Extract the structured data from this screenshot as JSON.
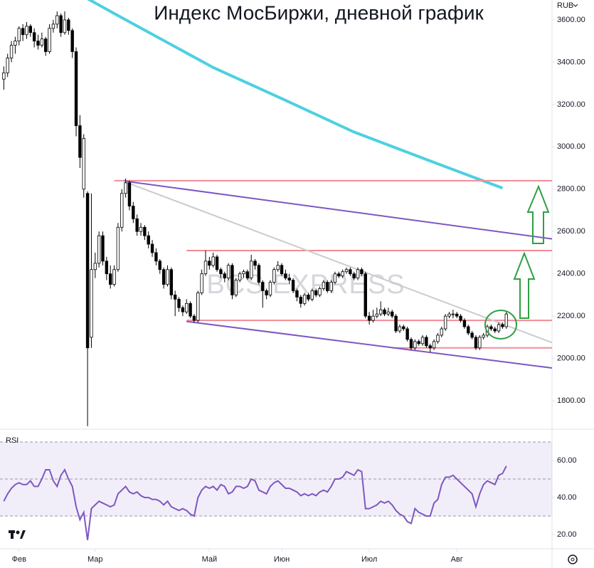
{
  "chart_data": [
    {
      "type": "candlestick",
      "title": "Индекс МосБиржи, дневной график",
      "watermark": "BCS EXPRESS",
      "currency": "RUB",
      "up_color": "#ffffff",
      "down_color": "#000000",
      "border_color": "#000000",
      "xlim": [
        -1,
        144
      ],
      "ylim": [
        1669,
        3694
      ],
      "yticks": [
        {
          "value": 1800,
          "label": "1800.00"
        },
        {
          "value": 2000,
          "label": "2000.00"
        },
        {
          "value": 2200,
          "label": "2200.00"
        },
        {
          "value": 2400,
          "label": "2400.00"
        },
        {
          "value": 2600,
          "label": "2600.00"
        },
        {
          "value": 2800,
          "label": "2800.00"
        },
        {
          "value": 3000,
          "label": "3000.00"
        },
        {
          "value": 3200,
          "label": "3200.00"
        },
        {
          "value": 3400,
          "label": "3400.00"
        },
        {
          "value": 3600,
          "label": "3600.00"
        }
      ],
      "xticks": [
        {
          "value": 4,
          "label": "Фев"
        },
        {
          "value": 24,
          "label": "Мар"
        },
        {
          "value": 54,
          "label": "Май"
        },
        {
          "value": 73,
          "label": "Июн"
        },
        {
          "value": 96,
          "label": "Июл"
        },
        {
          "value": 119,
          "label": "Авг"
        }
      ],
      "candles": [
        [
          3320,
          3380,
          3270,
          3350
        ],
        [
          3350,
          3440,
          3330,
          3420
        ],
        [
          3420,
          3500,
          3400,
          3480
        ],
        [
          3480,
          3520,
          3440,
          3500
        ],
        [
          3500,
          3570,
          3480,
          3560
        ],
        [
          3560,
          3580,
          3500,
          3530
        ],
        [
          3530,
          3590,
          3510,
          3570
        ],
        [
          3570,
          3580,
          3520,
          3540
        ],
        [
          3540,
          3560,
          3470,
          3500
        ],
        [
          3500,
          3530,
          3460,
          3480
        ],
        [
          3480,
          3540,
          3470,
          3510
        ],
        [
          3510,
          3520,
          3430,
          3450
        ],
        [
          3450,
          3580,
          3440,
          3560
        ],
        [
          3560,
          3600,
          3540,
          3580
        ],
        [
          3580,
          3640,
          3560,
          3620
        ],
        [
          3620,
          3630,
          3520,
          3540
        ],
        [
          3540,
          3640,
          3530,
          3600
        ],
        [
          3600,
          3610,
          3530,
          3550
        ],
        [
          3550,
          3560,
          3420,
          3450
        ],
        [
          3450,
          3470,
          3050,
          3100
        ],
        [
          3100,
          3150,
          2900,
          2950
        ],
        [
          2800,
          3060,
          2760,
          3040
        ],
        [
          2780,
          2790,
          1680,
          2050
        ],
        [
          2100,
          2780,
          2050,
          2420
        ],
        [
          2420,
          2500,
          2380,
          2450
        ],
        [
          2450,
          2600,
          2430,
          2580
        ],
        [
          2580,
          2600,
          2440,
          2460
        ],
        [
          2460,
          2480,
          2370,
          2400
        ],
        [
          2400,
          2440,
          2330,
          2350
        ],
        [
          2350,
          2440,
          2340,
          2420
        ],
        [
          2420,
          2640,
          2410,
          2620
        ],
        [
          2620,
          2800,
          2600,
          2780
        ],
        [
          2780,
          2850,
          2760,
          2830
        ],
        [
          2830,
          2840,
          2700,
          2720
        ],
        [
          2720,
          2740,
          2640,
          2660
        ],
        [
          2660,
          2680,
          2580,
          2600
        ],
        [
          2600,
          2640,
          2580,
          2620
        ],
        [
          2620,
          2630,
          2560,
          2580
        ],
        [
          2580,
          2600,
          2520,
          2540
        ],
        [
          2540,
          2560,
          2480,
          2500
        ],
        [
          2500,
          2520,
          2440,
          2460
        ],
        [
          2460,
          2470,
          2400,
          2420
        ],
        [
          2420,
          2430,
          2330,
          2350
        ],
        [
          2350,
          2440,
          2340,
          2420
        ],
        [
          2420,
          2430,
          2280,
          2300
        ],
        [
          2300,
          2320,
          2200,
          2280
        ],
        [
          2280,
          2290,
          2220,
          2240
        ],
        [
          2240,
          2250,
          2200,
          2220
        ],
        [
          2220,
          2280,
          2210,
          2260
        ],
        [
          2260,
          2270,
          2190,
          2200
        ],
        [
          2200,
          2210,
          2170,
          2180
        ],
        [
          2180,
          2320,
          2170,
          2310
        ],
        [
          2310,
          2420,
          2300,
          2400
        ],
        [
          2400,
          2510,
          2390,
          2460
        ],
        [
          2460,
          2480,
          2420,
          2440
        ],
        [
          2440,
          2500,
          2430,
          2480
        ],
        [
          2480,
          2490,
          2410,
          2420
        ],
        [
          2420,
          2430,
          2380,
          2400
        ],
        [
          2400,
          2410,
          2360,
          2380
        ],
        [
          2380,
          2450,
          2370,
          2440
        ],
        [
          2440,
          2450,
          2280,
          2300
        ],
        [
          2300,
          2380,
          2290,
          2370
        ],
        [
          2370,
          2410,
          2360,
          2400
        ],
        [
          2400,
          2420,
          2380,
          2410
        ],
        [
          2410,
          2420,
          2370,
          2380
        ],
        [
          2380,
          2490,
          2370,
          2460
        ],
        [
          2460,
          2470,
          2420,
          2440
        ],
        [
          2440,
          2450,
          2350,
          2360
        ],
        [
          2360,
          2370,
          2240,
          2320
        ],
        [
          2320,
          2330,
          2280,
          2300
        ],
        [
          2300,
          2370,
          2290,
          2360
        ],
        [
          2360,
          2430,
          2350,
          2420
        ],
        [
          2420,
          2460,
          2410,
          2440
        ],
        [
          2440,
          2450,
          2390,
          2400
        ],
        [
          2400,
          2420,
          2370,
          2380
        ],
        [
          2380,
          2400,
          2350,
          2370
        ],
        [
          2370,
          2380,
          2310,
          2320
        ],
        [
          2320,
          2330,
          2270,
          2290
        ],
        [
          2290,
          2300,
          2240,
          2260
        ],
        [
          2260,
          2310,
          2250,
          2300
        ],
        [
          2300,
          2310,
          2270,
          2280
        ],
        [
          2280,
          2330,
          2270,
          2320
        ],
        [
          2320,
          2330,
          2290,
          2300
        ],
        [
          2300,
          2340,
          2290,
          2330
        ],
        [
          2330,
          2370,
          2320,
          2360
        ],
        [
          2360,
          2370,
          2310,
          2320
        ],
        [
          2320,
          2370,
          2310,
          2360
        ],
        [
          2360,
          2410,
          2350,
          2400
        ],
        [
          2400,
          2410,
          2380,
          2390
        ],
        [
          2390,
          2420,
          2380,
          2410
        ],
        [
          2410,
          2430,
          2400,
          2420
        ],
        [
          2420,
          2430,
          2390,
          2400
        ],
        [
          2400,
          2410,
          2370,
          2380
        ],
        [
          2380,
          2430,
          2370,
          2420
        ],
        [
          2420,
          2430,
          2390,
          2400
        ],
        [
          2400,
          2410,
          2190,
          2200
        ],
        [
          2200,
          2220,
          2160,
          2180
        ],
        [
          2180,
          2230,
          2170,
          2200
        ],
        [
          2200,
          2240,
          2190,
          2210
        ],
        [
          2210,
          2270,
          2200,
          2230
        ],
        [
          2230,
          2240,
          2200,
          2210
        ],
        [
          2210,
          2240,
          2200,
          2220
        ],
        [
          2220,
          2230,
          2190,
          2200
        ],
        [
          2200,
          2210,
          2120,
          2130
        ],
        [
          2130,
          2160,
          2120,
          2150
        ],
        [
          2150,
          2160,
          2130,
          2140
        ],
        [
          2140,
          2150,
          2080,
          2090
        ],
        [
          2090,
          2100,
          2040,
          2050
        ],
        [
          2050,
          2090,
          2040,
          2080
        ],
        [
          2080,
          2090,
          2060,
          2070
        ],
        [
          2070,
          2110,
          2060,
          2100
        ],
        [
          2100,
          2110,
          2050,
          2060
        ],
        [
          2060,
          2070,
          2030,
          2050
        ],
        [
          2050,
          2090,
          2040,
          2080
        ],
        [
          2080,
          2120,
          2070,
          2110
        ],
        [
          2110,
          2150,
          2100,
          2140
        ],
        [
          2140,
          2210,
          2130,
          2200
        ],
        [
          2200,
          2220,
          2190,
          2210
        ],
        [
          2210,
          2230,
          2190,
          2210
        ],
        [
          2210,
          2220,
          2190,
          2200
        ],
        [
          2200,
          2210,
          2170,
          2180
        ],
        [
          2180,
          2190,
          2140,
          2150
        ],
        [
          2150,
          2160,
          2110,
          2120
        ],
        [
          2120,
          2130,
          2090,
          2100
        ],
        [
          2100,
          2110,
          2040,
          2050
        ],
        [
          2050,
          2110,
          2040,
          2100
        ],
        [
          2100,
          2120,
          2090,
          2110
        ],
        [
          2110,
          2160,
          2100,
          2150
        ],
        [
          2150,
          2160,
          2130,
          2140
        ],
        [
          2140,
          2150,
          2120,
          2130
        ],
        [
          2130,
          2170,
          2120,
          2160
        ],
        [
          2160,
          2170,
          2140,
          2150
        ],
        [
          2150,
          2220,
          2140,
          2210
        ]
      ],
      "levels": [
        {
          "value": 2840,
          "from": 29
        },
        {
          "value": 2510,
          "from": 48
        },
        {
          "value": 2180,
          "from": 48
        },
        {
          "value": 2050,
          "from": 102
        }
      ],
      "level_color": "#f28b96",
      "trendlines": [
        {
          "color": "#7e57c2",
          "x": [
            31,
            144
          ],
          "y": [
            2840,
            2565
          ]
        },
        {
          "color": "#7e57c2",
          "x": [
            48,
            144
          ],
          "y": [
            2175,
            1955
          ]
        },
        {
          "color": "#cccccc",
          "x": [
            31,
            144
          ],
          "y": [
            2840,
            2075
          ]
        }
      ],
      "moving_average": {
        "color": "#4dd0e1",
        "x": [
          22,
          29,
          55,
          74,
          92,
          111,
          131
        ],
        "y": [
          3700,
          3630,
          3375,
          3220,
          3070,
          2940,
          2805
        ]
      }
    },
    {
      "type": "line",
      "title": "RSI",
      "color": "#7e57c2",
      "ylim": [
        12.7,
        76.9
      ],
      "yticks": [
        {
          "value": 20,
          "label": "20.00"
        },
        {
          "value": 40,
          "label": "40.00"
        },
        {
          "value": 60,
          "label": "60.00"
        }
      ],
      "bands": [
        30,
        50,
        70
      ],
      "values": [
        38,
        42,
        45,
        47,
        48,
        47,
        47,
        49,
        46,
        46,
        50,
        55,
        55,
        49,
        46,
        52,
        55,
        50,
        46,
        35,
        28,
        32,
        17,
        34,
        36,
        38,
        37,
        36,
        35,
        36,
        42,
        44,
        46,
        43,
        42,
        43,
        41,
        40,
        40,
        39,
        39,
        38,
        36,
        38,
        35,
        34,
        33,
        34,
        33,
        31,
        30,
        40,
        44,
        46,
        45,
        46,
        44,
        47,
        46,
        42,
        43,
        46,
        46,
        45,
        46,
        50,
        49,
        44,
        43,
        42,
        46,
        48,
        49,
        47,
        45,
        45,
        44,
        43,
        41,
        42,
        41,
        42,
        41,
        43,
        44,
        43,
        46,
        50,
        50,
        51,
        54,
        53,
        52,
        55,
        54,
        34,
        34,
        35,
        36,
        38,
        37,
        38,
        36,
        33,
        31,
        30,
        27,
        26,
        34,
        32,
        31,
        30,
        30,
        37,
        39,
        47,
        51,
        51,
        52,
        50,
        48,
        46,
        44,
        42,
        35,
        42,
        47,
        49,
        48,
        47,
        52,
        53,
        57
      ]
    }
  ]
}
